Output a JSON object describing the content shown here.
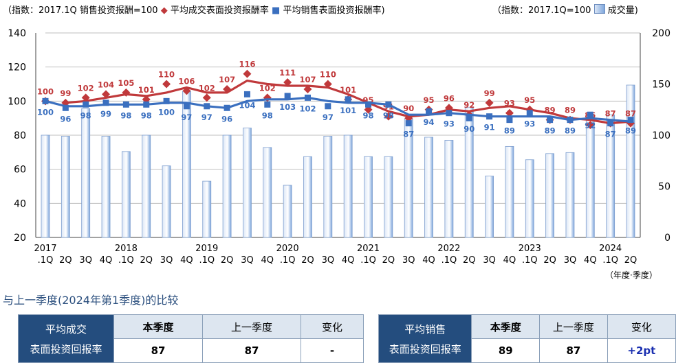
{
  "legend": {
    "left_prefix": "（指数：2017.1Q 销售投资报酬=100",
    "series_red": "平均成交表面投资报酬率",
    "series_blue": "平均销售表面投资报酬率)",
    "right_prefix": "（指数：2017.1Q=100",
    "bars": "成交量)"
  },
  "unit_label": "（年度·季度）",
  "section_title": "与上一季度(2024年第1季度)的比较",
  "tables": {
    "left": {
      "row_header": [
        "平均成交",
        "表面投资回报率"
      ],
      "col_headers": [
        "本季度",
        "上一季度",
        "变化"
      ],
      "values": [
        "87",
        "87",
        "-"
      ]
    },
    "right": {
      "row_header": [
        "平均销售",
        "表面投资回报率"
      ],
      "col_headers": [
        "本季度",
        "上一季度",
        "变化"
      ],
      "values": [
        "89",
        "87",
        "+2pt"
      ]
    }
  },
  "colors": {
    "red": "#c0393b",
    "blue": "#3a6fbf",
    "bar_light": "#dbe6f6",
    "bar_dark": "#7ea6dc",
    "header_bg": "#244d7e"
  },
  "chart_data": {
    "type": "bar+line",
    "quarters": [
      "2017\n.1Q",
      "2Q",
      "3Q",
      "4Q",
      "2018\n.1Q",
      "2Q",
      "3Q",
      "4Q",
      "2019\n.1Q",
      "2Q",
      "3Q",
      "4Q",
      "2020\n.1Q",
      "2Q",
      "3Q",
      "4Q",
      "2021\n.1Q",
      "2Q",
      "3Q",
      "4Q",
      "2022\n.1Q",
      "2Q",
      "3Q",
      "4Q",
      "2023\n.1Q",
      "2Q",
      "3Q",
      "4Q",
      "2024\n.1Q",
      "2Q"
    ],
    "year_ticks": [
      {
        "index": 0,
        "year": "2017",
        "q": ".1Q"
      },
      {
        "index": 1,
        "q": "2Q"
      },
      {
        "index": 2,
        "q": "3Q"
      },
      {
        "index": 3,
        "q": "4Q"
      },
      {
        "index": 4,
        "year": "2018",
        "q": ".1Q"
      },
      {
        "index": 5,
        "q": "2Q"
      },
      {
        "index": 6,
        "q": "3Q"
      },
      {
        "index": 7,
        "q": "4Q"
      },
      {
        "index": 8,
        "year": "2019",
        "q": ".1Q"
      },
      {
        "index": 9,
        "q": "2Q"
      },
      {
        "index": 10,
        "q": "3Q"
      },
      {
        "index": 11,
        "q": "4Q"
      },
      {
        "index": 12,
        "year": "2020",
        "q": ".1Q"
      },
      {
        "index": 13,
        "q": "2Q"
      },
      {
        "index": 14,
        "q": "3Q"
      },
      {
        "index": 15,
        "q": "4Q"
      },
      {
        "index": 16,
        "year": "2021",
        "q": ".1Q"
      },
      {
        "index": 17,
        "q": "2Q"
      },
      {
        "index": 18,
        "q": "3Q"
      },
      {
        "index": 19,
        "q": "4Q"
      },
      {
        "index": 20,
        "year": "2022",
        "q": ".1Q"
      },
      {
        "index": 21,
        "q": "2Q"
      },
      {
        "index": 22,
        "q": "3Q"
      },
      {
        "index": 23,
        "q": "4Q"
      },
      {
        "index": 24,
        "year": "2023",
        "q": ".1Q"
      },
      {
        "index": 25,
        "q": "2Q"
      },
      {
        "index": 26,
        "q": "3Q"
      },
      {
        "index": 27,
        "q": "4Q"
      },
      {
        "index": 28,
        "year": "2024",
        "q": ".1Q"
      },
      {
        "index": 29,
        "q": "2Q"
      }
    ],
    "series": [
      {
        "name": "平均成交表面投资报酬率",
        "axis": "left",
        "kind": "marker+trend",
        "values": [
          100,
          99,
          102,
          104,
          105,
          101,
          110,
          106,
          102,
          107,
          116,
          102,
          111,
          107,
          110,
          101,
          95,
          91,
          90,
          95,
          96,
          92,
          99,
          93,
          95,
          89,
          89,
          86,
          87,
          87
        ],
        "trend": [
          null,
          99,
          100,
          102,
          104,
          103,
          105,
          108,
          105,
          105,
          112,
          110,
          109,
          109,
          108,
          104,
          99,
          94,
          91,
          92,
          95,
          94,
          96,
          97,
          95,
          93,
          90,
          89,
          87,
          88
        ]
      },
      {
        "name": "平均销售表面投资报酬率",
        "axis": "left",
        "kind": "marker+trend",
        "values": [
          100,
          96,
          98,
          99,
          98,
          98,
          100,
          97,
          97,
          96,
          104,
          98,
          103,
          102,
          97,
          101,
          98,
          98,
          87,
          94,
          93,
          90,
          91,
          89,
          93,
          89,
          89,
          92,
          87,
          89
        ],
        "trend": [
          100,
          97,
          97,
          98,
          98,
          98,
          99,
          99,
          97,
          96,
          100,
          101,
          101,
          102,
          100,
          99,
          99,
          98,
          92,
          92,
          93,
          92,
          91,
          91,
          91,
          91,
          89,
          90,
          89,
          88
        ]
      },
      {
        "name": "成交量",
        "axis": "right",
        "kind": "bar",
        "values": [
          100,
          99,
          126,
          99,
          84,
          100,
          70,
          143,
          55,
          100,
          107,
          88,
          51,
          79,
          99,
          100,
          79,
          79,
          116,
          98,
          95,
          127,
          60,
          89,
          76,
          82,
          83,
          119,
          120,
          149
        ]
      }
    ],
    "y_left": {
      "min": 20,
      "max": 140,
      "ticks": [
        20,
        40,
        60,
        80,
        100,
        120,
        140
      ]
    },
    "y_right": {
      "min": 0,
      "max": 200,
      "ticks": [
        0,
        50,
        100,
        150,
        200
      ]
    },
    "grid": "horizontal"
  }
}
